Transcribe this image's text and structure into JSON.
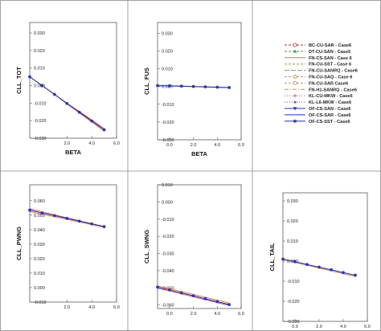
{
  "legend": {
    "entries": [
      {
        "label": "BC-CU-SAR - Case6",
        "color": "#cc2222",
        "marker": "circle-open",
        "dash": "3,2"
      },
      {
        "label": "DT-CU-SAN - Case5",
        "color": "#33aa33",
        "marker": "triangle",
        "dash": "3,2"
      },
      {
        "label": "FN-CS-SAN - Case 6",
        "color": "#ee7711",
        "marker": "none",
        "dash": ""
      },
      {
        "label": "FN-CU-SST - Case 6",
        "color": "#ee7711",
        "marker": "none",
        "dash": "3,2"
      },
      {
        "label": "FN-CU-SANRQ - Case6",
        "color": "#ee7711",
        "marker": "none",
        "dash": "6,2"
      },
      {
        "label": "FN-CU-SAQ - Case 6",
        "color": "#ee8822",
        "marker": "diamond-open",
        "dash": "3,2"
      },
      {
        "label": "FN-CU-SAR Case6",
        "color": "#ee8822",
        "marker": "circle-open",
        "dash": "3,2"
      },
      {
        "label": "FN-H1-SANRQ - Case6",
        "color": "#ee8822",
        "marker": "none",
        "dash": "5,2,1,2"
      },
      {
        "label": "KL-CU-MKW - Case6",
        "color": "#cc44cc",
        "marker": "plus",
        "dash": "1,2"
      },
      {
        "label": "KL-L6-MKW - Case6",
        "color": "#993399",
        "marker": "dot",
        "dash": "1,2"
      },
      {
        "label": "OF-CS-SAN - Case6",
        "color": "#2233cc",
        "marker": "triangle-down",
        "dash": ""
      },
      {
        "label": "OF-CS-SAR - Case6",
        "color": "#2233cc",
        "marker": "none",
        "dash": ""
      },
      {
        "label": "OF-CS-SST - Case6",
        "color": "#2233cc",
        "marker": "star",
        "dash": ""
      }
    ]
  },
  "chart_data": [
    {
      "type": "line",
      "panel": "CLL_TOT",
      "xlabel": "BETA",
      "ylabel": "CLL_TOT",
      "xlim": [
        -1,
        6
      ],
      "ylim": [
        -0.03,
        0.036
      ],
      "xticks": [
        "2.0",
        "4.0",
        "6.0"
      ],
      "xtick_values": [
        2,
        4,
        6
      ],
      "yticks": [
        "-0.030",
        "-0.020",
        "-0.010",
        "0.000",
        "0.010",
        "0.020",
        "0.030"
      ],
      "ytick_values": [
        -0.03,
        -0.02,
        -0.01,
        0,
        0.01,
        0.02,
        0.03
      ],
      "x": [
        -1,
        0,
        1,
        2,
        3,
        4,
        5
      ],
      "series": [
        {
          "values": [
            0.005,
            0.0,
            -0.005,
            -0.0102,
            -0.0152,
            -0.0202,
            -0.0252
          ]
        },
        {
          "values": [
            0.005,
            0.0,
            -0.0051,
            -0.0104,
            -0.0156,
            -0.0208,
            -0.026
          ]
        },
        {
          "values": [
            0.005,
            0.0,
            -0.005,
            -0.01,
            -0.0148,
            -0.0196,
            -0.0245
          ]
        }
      ]
    },
    {
      "type": "line",
      "panel": "CLL_FUS",
      "xlabel": "BETA",
      "ylabel": "CLL_FUS",
      "xlim": [
        -1,
        6
      ],
      "ylim": [
        -0.03,
        0.036
      ],
      "xticks": [
        "0.0",
        "2.0",
        "4.0",
        "6.0"
      ],
      "xtick_values": [
        0,
        2,
        4,
        6
      ],
      "yticks": [
        "-0.030",
        "-0.020",
        "-0.010",
        "0.000",
        "0.010",
        "0.020",
        "0.030"
      ],
      "ytick_values": [
        -0.03,
        -0.02,
        -0.01,
        0,
        0.01,
        0.02,
        0.03
      ],
      "x": [
        -1,
        0,
        1,
        2,
        3,
        4,
        5
      ],
      "series": [
        {
          "values": [
            0.0005,
            0.0004,
            0.0002,
            0.0,
            -0.0002,
            -0.0004,
            -0.0006
          ]
        },
        {
          "values": [
            0.0003,
            0.0002,
            0.0,
            -0.0001,
            -0.0003,
            -0.0005,
            -0.0007
          ]
        }
      ]
    },
    {
      "type": "line",
      "panel": "CLL_PWNG",
      "xlabel": "",
      "ylabel": "CLL_PWNG",
      "xlim": [
        -1,
        6
      ],
      "ylim": [
        -0.01,
        0.071
      ],
      "xticks": [
        "2.0",
        "4.0",
        "6.0"
      ],
      "xtick_values": [
        2,
        4,
        6
      ],
      "yticks": [
        "-0.010",
        "0.000",
        "0.010",
        "0.020",
        "0.030",
        "0.040",
        "0.050",
        "0.060"
      ],
      "ytick_values": [
        -0.01,
        0,
        0.01,
        0.02,
        0.03,
        0.04,
        0.05,
        0.06
      ],
      "x": [
        -1,
        0,
        1,
        2,
        3,
        4,
        5
      ],
      "series": [
        {
          "values": [
            0.0535,
            0.0515,
            0.0497,
            0.0478,
            0.0459,
            0.044,
            0.0421
          ]
        },
        {
          "values": [
            0.0525,
            0.0507,
            0.0489,
            0.0471,
            0.0453,
            0.0435,
            0.0417
          ]
        },
        {
          "values": [
            0.0545,
            0.0523,
            0.0502,
            0.0482,
            0.0462,
            0.0442,
            0.0422
          ]
        }
      ]
    },
    {
      "type": "line",
      "panel": "CLL_SWNG",
      "xlabel": "",
      "ylabel": "CLL_SWNG",
      "xlim": [
        -1,
        6
      ],
      "ylim": [
        -0.062,
        0.01
      ],
      "xticks": [
        "0.0",
        "2.0",
        "4.0",
        "6.0"
      ],
      "xtick_values": [
        0,
        2,
        4,
        6
      ],
      "yticks": [
        "-0.060",
        "-0.050",
        "-0.040",
        "-0.030",
        "-0.020",
        "-0.010",
        "0.000",
        "0.010"
      ],
      "ytick_values": [
        -0.06,
        -0.05,
        -0.04,
        -0.03,
        -0.02,
        -0.01,
        0,
        0.01
      ],
      "x": [
        -1,
        0,
        1,
        2,
        3,
        4,
        5
      ],
      "series": [
        {
          "values": [
            -0.0495,
            -0.0512,
            -0.0529,
            -0.0546,
            -0.0563,
            -0.058,
            -0.0597
          ]
        },
        {
          "values": [
            -0.0488,
            -0.0505,
            -0.0521,
            -0.0538,
            -0.0554,
            -0.0571,
            -0.0588
          ]
        },
        {
          "values": [
            -0.0502,
            -0.0518,
            -0.0535,
            -0.0552,
            -0.0569,
            -0.0586,
            -0.0602
          ]
        }
      ]
    },
    {
      "type": "line",
      "panel": "CLL_TAIL",
      "xlabel": "",
      "ylabel": "CLL_TAIL",
      "xlim": [
        -1,
        6
      ],
      "ylim": [
        -0.03,
        0.034
      ],
      "xticks": [
        "0.0",
        "2.0",
        "4.0",
        "6.0"
      ],
      "xtick_values": [
        0,
        2,
        4,
        6
      ],
      "yticks": [
        "-0.030",
        "-0.020",
        "-0.010",
        "0.000",
        "0.010",
        "0.020",
        "0.030"
      ],
      "ytick_values": [
        -0.03,
        -0.02,
        -0.01,
        0,
        0.01,
        0.02,
        0.03
      ],
      "x": [
        -1,
        0,
        1,
        2,
        3,
        4,
        5
      ],
      "series": [
        {
          "values": [
            0.001,
            -0.0003,
            -0.0017,
            -0.003,
            -0.0043,
            -0.0057,
            -0.007
          ]
        },
        {
          "values": [
            0.0008,
            -0.0006,
            -0.002,
            -0.0034,
            -0.0048,
            -0.0062,
            -0.0076
          ]
        }
      ]
    }
  ]
}
